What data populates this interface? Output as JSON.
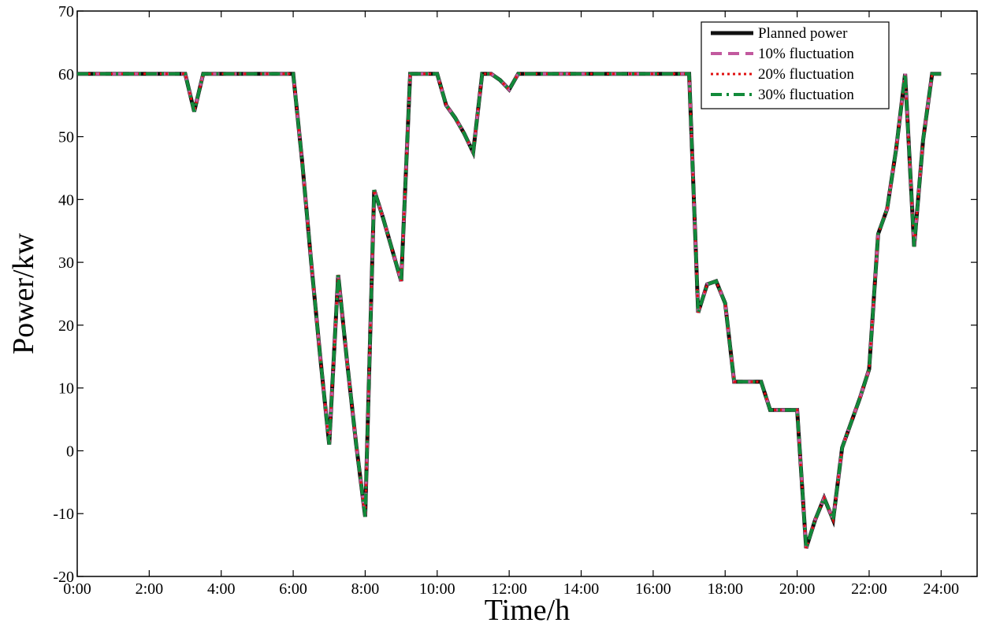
{
  "chart_data": {
    "type": "line",
    "xlabel": "Time/h",
    "ylabel": "Power/kw",
    "xlim": [
      0,
      25
    ],
    "ylim": [
      -20,
      70
    ],
    "x_ticks": [
      {
        "value": 0,
        "label": "0:00"
      },
      {
        "value": 2,
        "label": "2:00"
      },
      {
        "value": 4,
        "label": "4:00"
      },
      {
        "value": 6,
        "label": "6:00"
      },
      {
        "value": 8,
        "label": "8:00"
      },
      {
        "value": 10,
        "label": "10:00"
      },
      {
        "value": 12,
        "label": "12:00"
      },
      {
        "value": 14,
        "label": "14:00"
      },
      {
        "value": 16,
        "label": "16:00"
      },
      {
        "value": 18,
        "label": "18:00"
      },
      {
        "value": 20,
        "label": "20:00"
      },
      {
        "value": 22,
        "label": "22:00"
      },
      {
        "value": 24,
        "label": "24:00"
      }
    ],
    "y_ticks": [
      {
        "value": -20,
        "label": "-20"
      },
      {
        "value": -10,
        "label": "-10"
      },
      {
        "value": 0,
        "label": "0"
      },
      {
        "value": 10,
        "label": "10"
      },
      {
        "value": 20,
        "label": "20"
      },
      {
        "value": 30,
        "label": "30"
      },
      {
        "value": 40,
        "label": "40"
      },
      {
        "value": 50,
        "label": "50"
      },
      {
        "value": 60,
        "label": "60"
      },
      {
        "value": 70,
        "label": "70"
      }
    ],
    "grid": false,
    "legend_position": "top-right",
    "x": [
      0,
      0.25,
      0.5,
      0.75,
      1,
      1.25,
      1.5,
      1.75,
      2,
      2.25,
      2.5,
      2.75,
      3,
      3.25,
      3.5,
      3.75,
      4,
      4.25,
      4.5,
      4.75,
      5,
      5.25,
      5.5,
      5.75,
      6,
      6.25,
      6.5,
      6.75,
      7,
      7.25,
      7.5,
      7.75,
      8,
      8.25,
      8.5,
      8.75,
      9,
      9.25,
      9.5,
      9.75,
      10,
      10.25,
      10.5,
      10.75,
      11,
      11.25,
      11.5,
      11.75,
      12,
      12.25,
      12.5,
      12.75,
      13,
      13.25,
      13.5,
      13.75,
      14,
      14.25,
      14.5,
      14.75,
      15,
      15.25,
      15.5,
      15.75,
      16,
      16.25,
      16.5,
      16.75,
      17,
      17.25,
      17.5,
      17.75,
      18,
      18.25,
      18.5,
      18.75,
      19,
      19.25,
      19.5,
      19.75,
      20,
      20.25,
      20.5,
      20.75,
      21,
      21.25,
      21.5,
      21.75,
      22,
      22.25,
      22.5,
      22.75,
      23,
      23.25,
      23.5,
      23.75,
      24
    ],
    "series": [
      {
        "name": "Planned power",
        "color": "#111111",
        "style": "solid",
        "values": [
          60,
          60,
          60,
          60,
          60,
          60,
          60,
          60,
          60,
          60,
          60,
          60,
          60,
          54,
          60,
          60,
          60,
          60,
          60,
          60,
          60,
          60,
          60,
          60,
          60,
          46,
          30,
          15,
          1,
          28,
          14,
          1,
          -10.5,
          41.5,
          37,
          32,
          27,
          60,
          60,
          60,
          60,
          55,
          53,
          50.5,
          47.5,
          60,
          60,
          59,
          57.5,
          60,
          60,
          60,
          60,
          60,
          60,
          60,
          60,
          60,
          60,
          60,
          60,
          60,
          60,
          60,
          60,
          60,
          60,
          60,
          60,
          22,
          26.5,
          27,
          23.5,
          11,
          11,
          11,
          11,
          6.5,
          6.5,
          6.5,
          6.5,
          -15.5,
          -11,
          -7.5,
          -11,
          0.5,
          4.5,
          8.5,
          13,
          34.5,
          38.5,
          48,
          60,
          32.5,
          49.5,
          60,
          60
        ]
      },
      {
        "name": "10% fluctuation",
        "color": "#c2599e",
        "style": "dash",
        "values": [
          60,
          60,
          60,
          60,
          60,
          60,
          60,
          60,
          60,
          60,
          60,
          60,
          60,
          54,
          60,
          60,
          60,
          60,
          60,
          60,
          60,
          60,
          60,
          60,
          60,
          46,
          30,
          15,
          1,
          28,
          14,
          1,
          -10.5,
          41.5,
          37,
          32,
          27,
          60,
          60,
          60,
          60,
          55,
          53,
          50.5,
          47.5,
          60,
          60,
          59,
          57.5,
          60,
          60,
          60,
          60,
          60,
          60,
          60,
          60,
          60,
          60,
          60,
          60,
          60,
          60,
          60,
          60,
          60,
          60,
          60,
          60,
          22,
          26.5,
          27,
          23.5,
          11,
          11,
          11,
          11,
          6.5,
          6.5,
          6.5,
          6.5,
          -15.5,
          -11,
          -7.5,
          -11,
          0.5,
          4.5,
          8.5,
          13,
          34.5,
          38.5,
          48,
          60,
          32.5,
          49.5,
          60,
          60
        ]
      },
      {
        "name": "20% fluctuation",
        "color": "#e01010",
        "style": "dot",
        "values": [
          60,
          60,
          60,
          60,
          60,
          60,
          60,
          60,
          60,
          60,
          60,
          60,
          60,
          54,
          60,
          60,
          60,
          60,
          60,
          60,
          60,
          60,
          60,
          60,
          60,
          46,
          30,
          15,
          1,
          28,
          14,
          1,
          -10.5,
          41.5,
          37,
          32,
          27,
          60,
          60,
          60,
          60,
          55,
          53,
          50.5,
          47.5,
          60,
          60,
          59,
          57.5,
          60,
          60,
          60,
          60,
          60,
          60,
          60,
          60,
          60,
          60,
          60,
          60,
          60,
          60,
          60,
          60,
          60,
          60,
          60,
          60,
          22,
          26.5,
          27,
          23.5,
          11,
          11,
          11,
          11,
          6.5,
          6.5,
          6.5,
          6.5,
          -15.5,
          -11,
          -7.5,
          -11,
          0.5,
          4.5,
          8.5,
          13,
          34.5,
          38.5,
          48,
          60,
          32.5,
          49.5,
          60,
          60
        ]
      },
      {
        "name": "30% fluctuation",
        "color": "#128a3a",
        "style": "dashdot",
        "values": [
          60,
          60,
          60,
          60,
          60,
          60,
          60,
          60,
          60,
          60,
          60,
          60,
          60,
          54,
          60,
          60,
          60,
          60,
          60,
          60,
          60,
          60,
          60,
          60,
          60,
          46,
          30,
          15,
          1,
          28,
          14,
          1,
          -10.5,
          41.5,
          37,
          32,
          27,
          60,
          60,
          60,
          60,
          55,
          53,
          50.5,
          47.5,
          60,
          60,
          59,
          57.5,
          60,
          60,
          60,
          60,
          60,
          60,
          60,
          60,
          60,
          60,
          60,
          60,
          60,
          60,
          60,
          60,
          60,
          60,
          60,
          60,
          22,
          26.5,
          27,
          23.5,
          11,
          11,
          11,
          11,
          6.5,
          6.5,
          6.5,
          6.5,
          -15.5,
          -11,
          -7.5,
          -11,
          0.5,
          4.5,
          8.5,
          13,
          34.5,
          38.5,
          48,
          60,
          32.5,
          49.5,
          60,
          60
        ]
      }
    ]
  }
}
